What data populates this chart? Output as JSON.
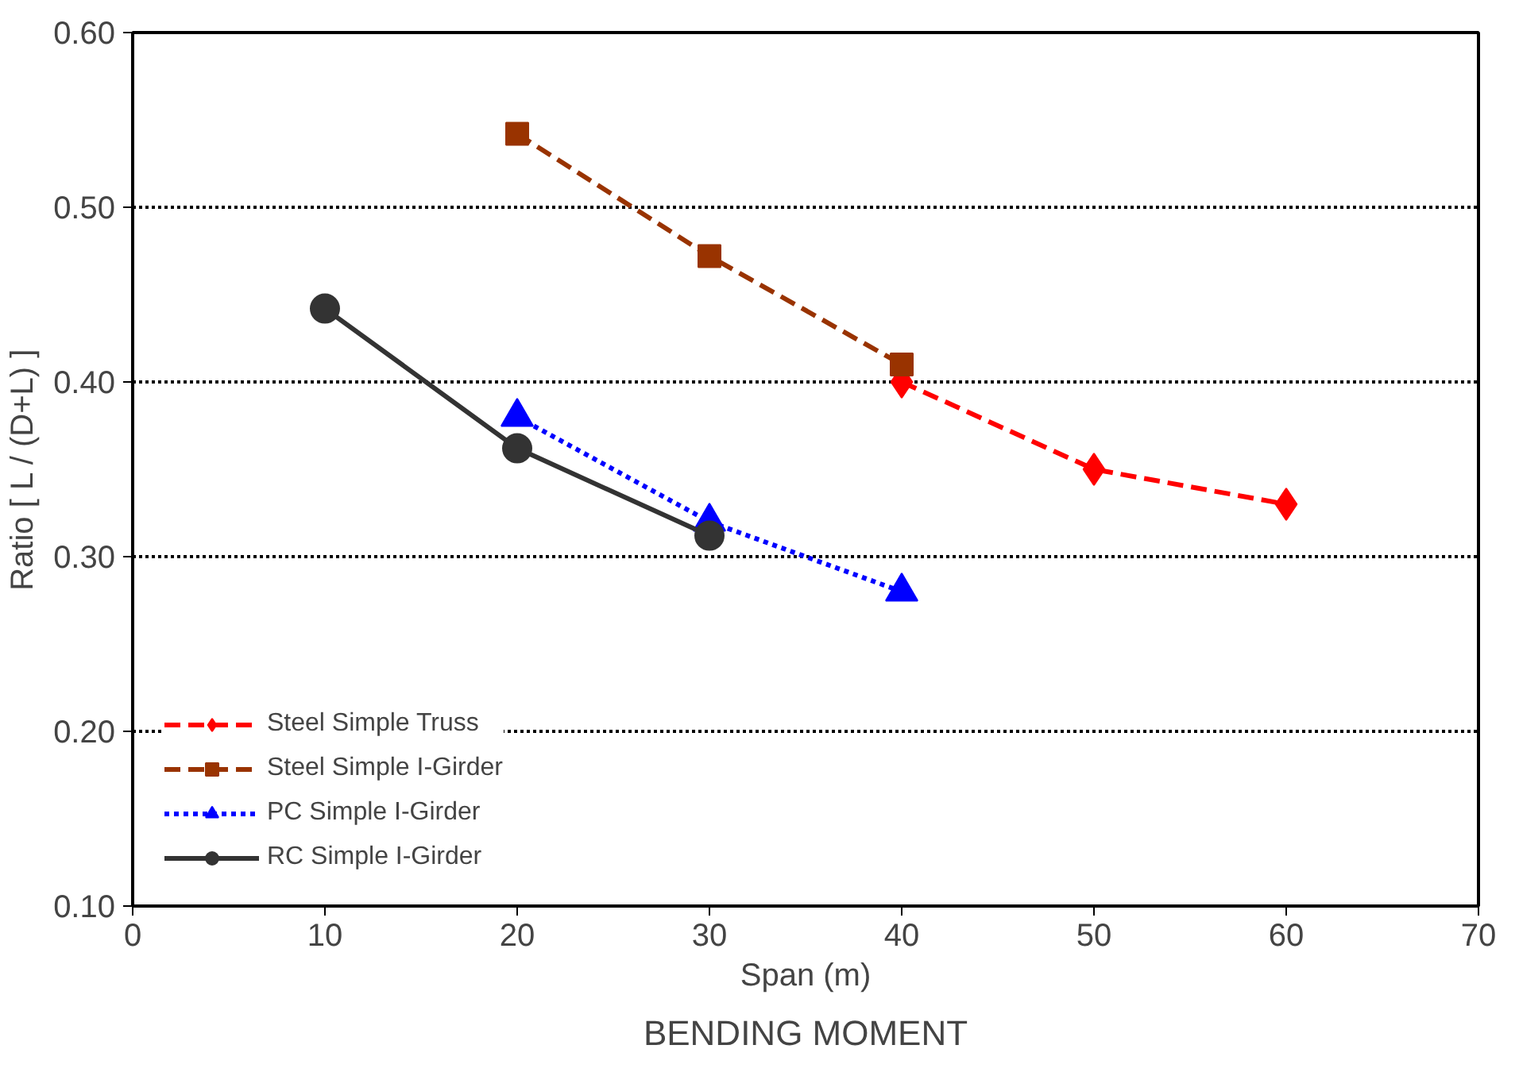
{
  "chart_data": {
    "type": "line",
    "xlabel": "Span (m)",
    "ylabel": "Ratio [ L / (D+L) ]",
    "annotations": [
      "BENDING MOMENT"
    ],
    "xlim": [
      0,
      70
    ],
    "xticks": [
      0,
      10,
      20,
      30,
      40,
      50,
      60,
      70
    ],
    "ylim": [
      0.1,
      0.6
    ],
    "yticks": [
      {
        "value": 0.1,
        "label": "0.10"
      },
      {
        "value": 0.2,
        "label": "0.20"
      },
      {
        "value": 0.3,
        "label": "0.30"
      },
      {
        "value": 0.4,
        "label": "0.40"
      },
      {
        "value": 0.5,
        "label": "0.50"
      },
      {
        "value": 0.6,
        "label": "0.60"
      }
    ],
    "grid": "y",
    "legend": "bottom left",
    "series": [
      {
        "name": "Steel Simple Truss",
        "color": "#ff0000",
        "x": [
          40,
          50,
          60
        ],
        "values": [
          0.4,
          0.35,
          0.33
        ],
        "marker": "diamond",
        "line_style": "dashed"
      },
      {
        "name": "Steel Simple I-Girder",
        "color": "#993300",
        "x": [
          20,
          30,
          40
        ],
        "values": [
          0.542,
          0.472,
          0.41
        ],
        "marker": "square",
        "line_style": "dashed"
      },
      {
        "name": "PC Simple I-Girder",
        "color": "#0000ff",
        "x": [
          20,
          30,
          40
        ],
        "values": [
          0.38,
          0.32,
          0.28
        ],
        "marker": "triangle",
        "line_style": "dotted"
      },
      {
        "name": "RC Simple I-Girder",
        "color": "#333333",
        "x": [
          10,
          20,
          30
        ],
        "values": [
          0.442,
          0.362,
          0.312
        ],
        "marker": "circle",
        "line_style": "solid"
      }
    ]
  }
}
